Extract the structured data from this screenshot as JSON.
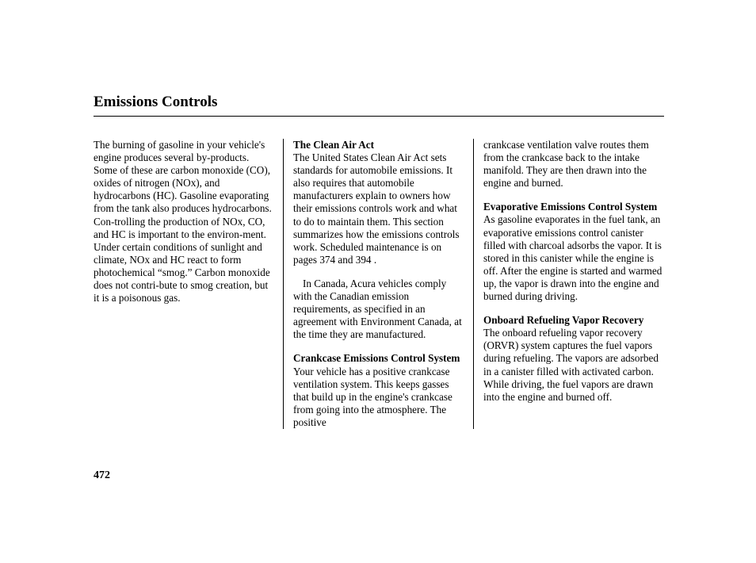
{
  "title": "Emissions Controls",
  "pageNumber": "472",
  "col1": {
    "intro": "The burning of gasoline in your vehicle's engine produces several by-products. Some of these are carbon monoxide (CO), oxides of nitrogen (NOx), and hydrocarbons (HC). Gasoline evaporating from the tank also produces hydrocarbons. Con-trolling the production of NOx, CO, and HC is important to the environ-ment. Under certain conditions of sunlight and climate, NOx and HC react to form photochemical “smog.” Carbon monoxide does not contri-bute to smog creation, but it is a poisonous gas."
  },
  "col2": {
    "cleanAirHead": "The Clean Air Act",
    "cleanAirBody": "The United States Clean Air Act sets standards for automobile emissions. It also requires that automobile manufacturers explain to owners how their emissions controls work and what to do to maintain them. This section summarizes how the emissions controls work. Scheduled maintenance is on pages 374 and 394 .",
    "canada": "In Canada, Acura vehicles comply with the Canadian emission requirements, as specified in an agreement with Environment Canada, at the time they are manufactured.",
    "crankcaseHead": "Crankcase Emissions Control System",
    "crankcaseBody": "Your vehicle has a positive crankcase ventilation system. This keeps gasses that build up in the engine's crankcase from going into the atmosphere. The positive"
  },
  "col3": {
    "crankcaseCont": "crankcase ventilation valve routes them from the crankcase back to the intake manifold. They are then drawn into the engine and burned.",
    "evapHead": "Evaporative Emissions Control System",
    "evapBody": "As gasoline evaporates in the fuel tank, an evaporative emissions control canister filled with charcoal adsorbs the vapor. It is stored in this canister while the engine is off. After the engine is started and warmed up, the vapor is drawn into the engine and burned during driving.",
    "orvrHead": "Onboard Refueling Vapor Recovery",
    "orvrBody": "The onboard refueling vapor recovery (ORVR) system captures the fuel vapors during refueling. The vapors are adsorbed in a canister filled with activated carbon. While driving, the fuel vapors are drawn into the engine and burned off."
  }
}
